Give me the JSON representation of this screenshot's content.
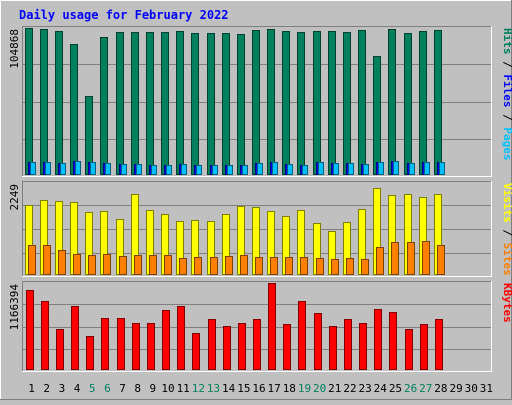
{
  "chart_data": {
    "type": "bar",
    "title": "Daily usage for February 2022",
    "categories": [
      "1",
      "2",
      "3",
      "4",
      "5",
      "6",
      "7",
      "8",
      "9",
      "10",
      "11",
      "12",
      "13",
      "14",
      "15",
      "16",
      "17",
      "18",
      "19",
      "20",
      "21",
      "22",
      "23",
      "24",
      "25",
      "26",
      "27",
      "28",
      "29",
      "30",
      "31"
    ],
    "weekend_days": [
      5,
      6,
      12,
      13,
      19,
      20,
      26,
      27
    ],
    "panels": [
      {
        "id": "hits",
        "max_label": "104868",
        "ylim": [
          0,
          104868
        ],
        "axis_title": [
          "Hits",
          "Files",
          "Pages"
        ],
        "series": [
          {
            "name": "Hits",
            "color": "#00805c",
            "values": [
              104868,
              103800,
              102500,
              93800,
              56400,
              98700,
              102200,
              102200,
              102200,
              102200,
              102600,
              101400,
              101600,
              101400,
              100700,
              103400,
              104000,
              102600,
              101900,
              102800,
              102600,
              102200,
              103300,
              84900,
              104000,
              101400,
              102800,
              103300,
              null,
              null,
              null
            ]
          },
          {
            "name": "Files",
            "color": "#0000ff",
            "values": [
              9500,
              9000,
              8400,
              10300,
              9200,
              8600,
              8200,
              8000,
              7300,
              7400,
              8000,
              6800,
              7200,
              7300,
              7300,
              8700,
              9100,
              7900,
              7000,
              9200,
              8400,
              8300,
              8000,
              9600,
              10000,
              8700,
              9000,
              9000,
              null,
              null,
              null
            ]
          },
          {
            "name": "Pages",
            "color": "#00c0ff",
            "values": [
              9500,
              9000,
              8400,
              10300,
              9200,
              8600,
              8200,
              8000,
              7300,
              7400,
              8000,
              6800,
              7200,
              7300,
              7300,
              8700,
              9100,
              7900,
              7000,
              9200,
              8400,
              8300,
              8000,
              9600,
              10000,
              8700,
              9000,
              9000,
              null,
              null,
              null
            ]
          }
        ]
      },
      {
        "id": "visits",
        "max_label": "2249",
        "ylim": [
          0,
          2249
        ],
        "axis_title": [
          "Visits",
          "Sites"
        ],
        "series": [
          {
            "name": "Visits",
            "color": "#ffff00",
            "values": [
              1720,
              1840,
              1800,
              1780,
              1540,
              1570,
              1380,
              1990,
              1590,
              1500,
              1330,
              1340,
              1330,
              1480,
              1690,
              1660,
              1560,
              1450,
              1580,
              1270,
              1080,
              1300,
              1620,
              2120,
              1950,
              1990,
              1910,
              1990,
              null,
              null,
              null
            ]
          },
          {
            "name": "Sites",
            "color": "#ff8000",
            "values": [
              740,
              740,
              610,
              510,
              490,
              510,
              470,
              500,
              500,
              480,
              420,
              430,
              430,
              470,
              480,
              450,
              430,
              440,
              430,
              410,
              390,
              420,
              400,
              680,
              800,
              800,
              820,
              730,
              null,
              null,
              null
            ]
          }
        ]
      },
      {
        "id": "kbytes",
        "max_label": "1166394",
        "ylim": [
          0,
          1166394
        ],
        "axis_title": [
          "KBytes"
        ],
        "series": [
          {
            "name": "KBytes",
            "color": "#ff0000",
            "values": [
              1069400,
              918900,
              551800,
              854600,
              461300,
              696600,
              696600,
              624800,
              624800,
              797800,
              861900,
              501300,
              681000,
              592700,
              627600,
              677700,
              1166394,
              611500,
              918900,
              764300,
              592700,
              681000,
              624800,
              814300,
              779500,
              549500,
              611500,
              681000,
              null,
              null,
              null
            ]
          }
        ]
      }
    ]
  }
}
